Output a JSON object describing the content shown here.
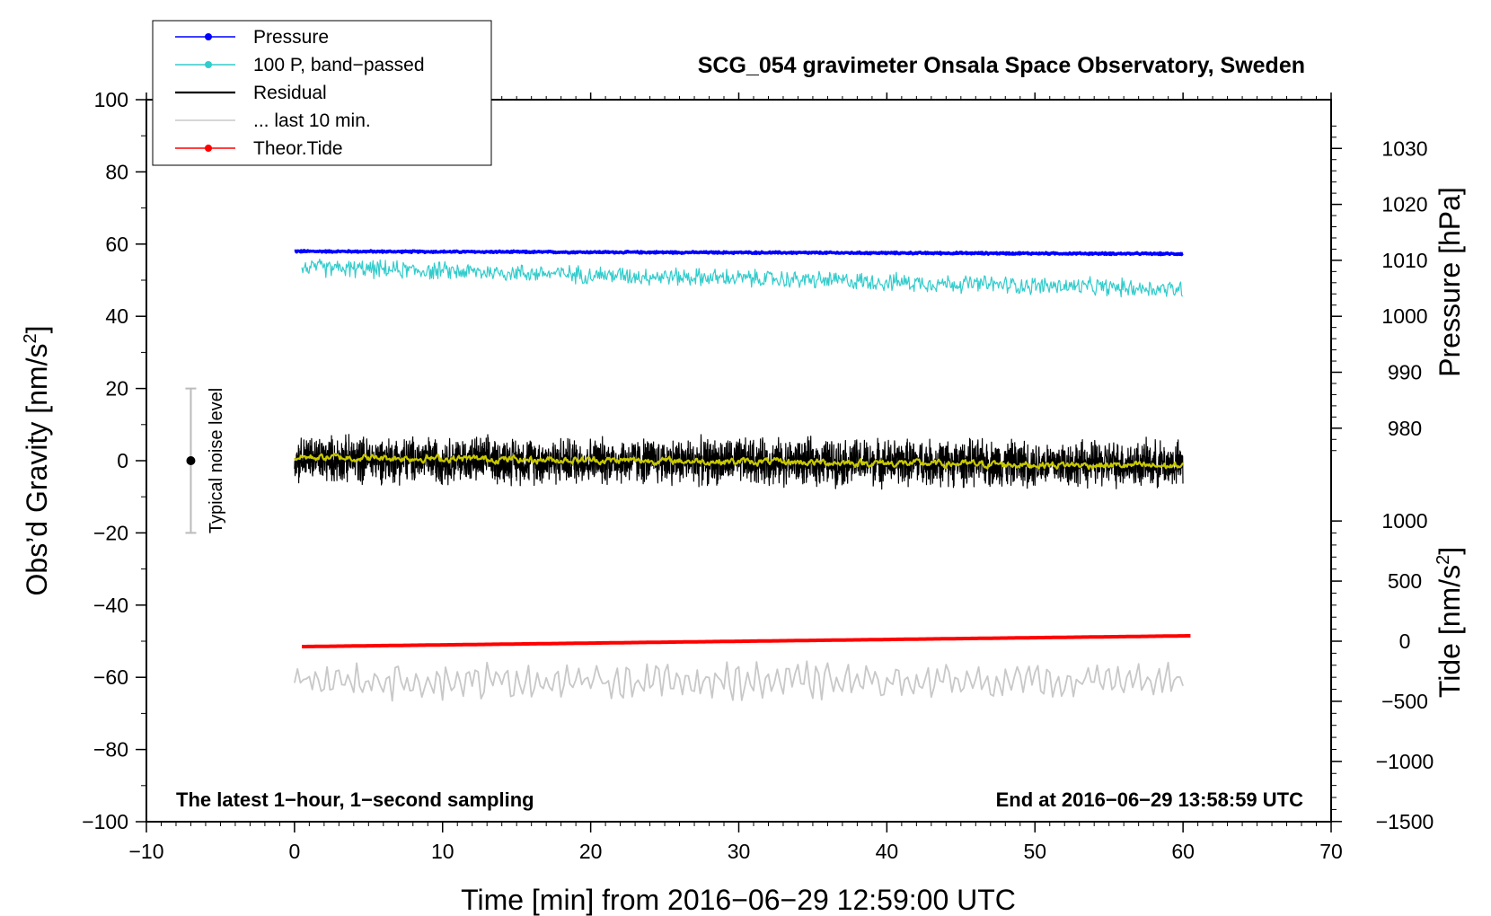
{
  "chart_data": {
    "type": "line",
    "title": "SCG_054 gravimeter Onsala Space Observatory, Sweden",
    "xlabel": "Time [min] from 2016−06−29 12:59:00 UTC",
    "ylabel_left": "Obs’d Gravity [nm/s",
    "ylabel_left_sup": "2",
    "ylabel_left_close": "]",
    "ylabel_right_pressure": "Pressure [hPa]",
    "ylabel_right_tide": "Tide [nm/s",
    "ylabel_right_tide_sup": "2",
    "ylabel_right_tide_close": "]",
    "footer_left": "The latest 1−hour, 1−second sampling",
    "footer_right": "End at 2016−06−29 13:58:59 UTC",
    "noise_label": "Typical noise level",
    "xlim": [
      -10,
      70
    ],
    "ylim": [
      -100,
      100
    ],
    "xticks": [
      -10,
      0,
      10,
      20,
      30,
      40,
      50,
      60,
      70
    ],
    "xtick_labels": [
      "−10",
      "0",
      "10",
      "20",
      "30",
      "40",
      "50",
      "60",
      "70"
    ],
    "yticks": [
      100,
      80,
      60,
      40,
      20,
      0,
      -20,
      -40,
      -60,
      -80,
      -100
    ],
    "ytick_labels": [
      "100",
      "80",
      "60",
      "40",
      "20",
      "0",
      "−20",
      "−40",
      "−60",
      "−80",
      "−100"
    ],
    "pressure_axis": {
      "ticks": [
        1030,
        1020,
        1010,
        1000,
        990,
        980
      ],
      "labels": [
        "1030",
        "1020",
        "1010",
        "1000",
        "990",
        "980"
      ],
      "gravity_equiv_at_1000": 40,
      "units_per_hpa": 1.55
    },
    "tide_axis": {
      "ticks": [
        1000,
        500,
        0,
        -500,
        -1000,
        -1500
      ],
      "labels": [
        "1000",
        "500",
        "0",
        "−500",
        "−1000",
        "−1500"
      ],
      "gravity_equiv_at_0": -50,
      "units_per_nms2": 0.0333
    },
    "noise_bar": {
      "x": -7,
      "center": 0,
      "low": -20,
      "high": 20
    },
    "series": [
      {
        "name": "Pressure",
        "legend": "Pressure",
        "color": "#0000ff",
        "kind": "line-dot",
        "x_start": 0,
        "x_end": 60,
        "y_start": 58.0,
        "y_end": 57.3,
        "noise": 0.2
      },
      {
        "name": "100 P, band-passed",
        "legend": "100 P, band−passed",
        "color": "#33cccc",
        "kind": "line-dot",
        "x_start": 0.5,
        "x_end": 60,
        "y_start": 53.5,
        "y_end": 47.5,
        "noise": 2.0
      },
      {
        "name": "Residual",
        "legend": "Residual",
        "color": "#000000",
        "kind": "line",
        "x_start": 0,
        "x_end": 60,
        "y_start": 0.5,
        "y_end": -1.0,
        "noise": 5.0
      },
      {
        "name": "Residual smoothed",
        "legend": null,
        "color": "#c8c800",
        "kind": "line",
        "x_start": 0,
        "x_end": 60,
        "y_start": 1.0,
        "y_end": -1.5,
        "noise": 0.9
      },
      {
        "name": "... last 10 min.",
        "legend": "... last 10 min.",
        "color": "#c8c8c8",
        "kind": "line",
        "x_start": 0,
        "x_end": 60,
        "y_start": -61,
        "y_end": -61,
        "noise": 3.5
      },
      {
        "name": "Theor.Tide",
        "legend": "Theor.Tide",
        "color": "#ff0000",
        "kind": "line-dot",
        "x_start": 0.5,
        "x_end": 60.5,
        "y_start": -51.5,
        "y_end": -48.5,
        "noise": 0
      }
    ]
  }
}
